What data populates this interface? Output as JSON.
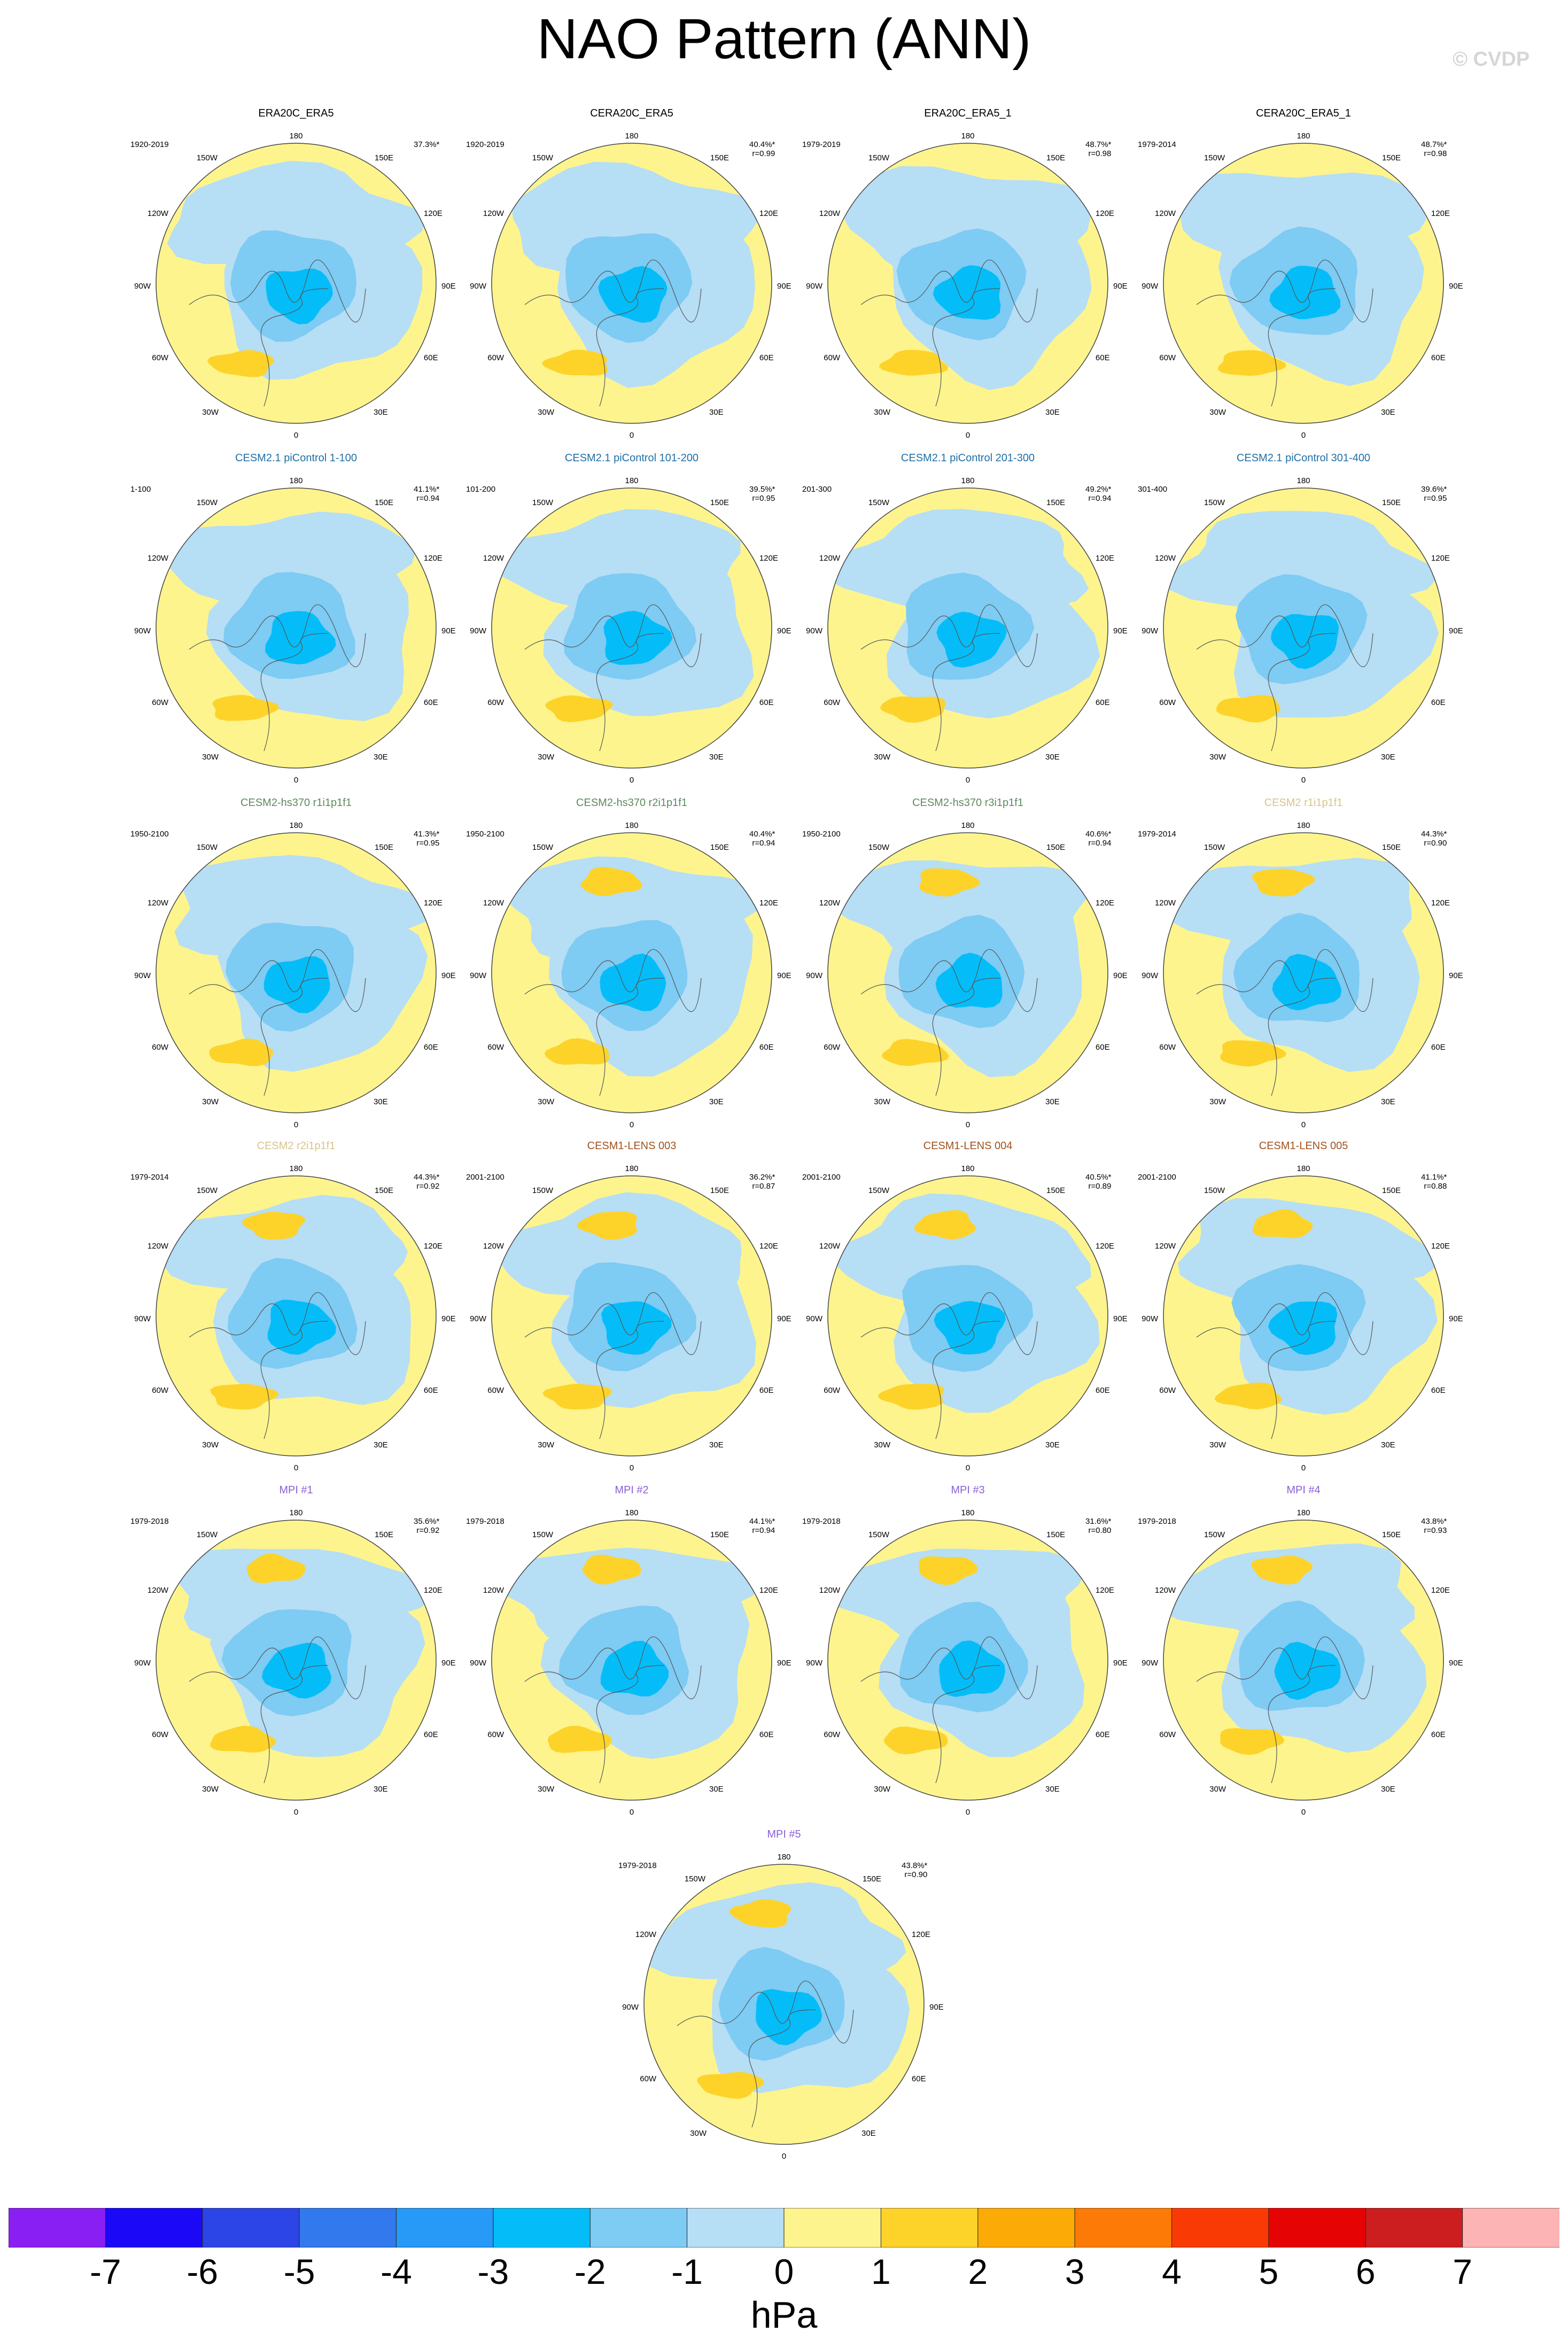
{
  "title": "NAO Pattern (ANN)",
  "watermark": "© CVDP",
  "colorbar": {
    "unit": "hPa",
    "ticks": [
      "-7",
      "-6",
      "-5",
      "-4",
      "-3",
      "-2",
      "-1",
      "0",
      "1",
      "2",
      "3",
      "4",
      "5",
      "6",
      "7"
    ],
    "colors": [
      "#8a1ff3",
      "#1a08f6",
      "#2b45e6",
      "#3179ec",
      "#2799f7",
      "#04bdf8",
      "#7ecbf3",
      "#b6def5",
      "#fdf48e",
      "#fdd32a",
      "#fcaa05",
      "#fc7a05",
      "#f93a05",
      "#e60303",
      "#cc1d1f",
      "#fdb4b4"
    ]
  },
  "map_labels": {
    "lon_top": "180",
    "lon_bottom": "0",
    "lon_150w": "150W",
    "lon_150e": "150E",
    "lon_120w": "120W",
    "lon_120e": "120E",
    "lon_90w": "90W",
    "lon_90e": "90E",
    "lon_60w": "60W",
    "lon_60e": "60E",
    "lon_30w": "30W",
    "lon_30e": "30E"
  },
  "chart_data": {
    "type": "polar stereographic contour maps",
    "variable": "NAO pattern, sea level pressure anomaly (hPa)",
    "colorbar_range": [
      -7,
      7
    ],
    "panels": [
      {
        "title": "ERA20C_ERA5",
        "title_color": "#000000",
        "period": "1920-2019",
        "pct": "37.3%*",
        "r": ""
      },
      {
        "title": "CERA20C_ERA5",
        "title_color": "#000000",
        "period": "1920-2019",
        "pct": "40.4%*",
        "r": "r=0.99"
      },
      {
        "title": "ERA20C_ERA5_1",
        "title_color": "#000000",
        "period": "1979-2019",
        "pct": "48.7%*",
        "r": "r=0.98"
      },
      {
        "title": "CERA20C_ERA5_1",
        "title_color": "#000000",
        "period": "1979-2014",
        "pct": "48.7%*",
        "r": "r=0.98"
      },
      {
        "title": "CESM2.1 piControl 1-100",
        "title_color": "#1f6fa6",
        "period": "1-100",
        "pct": "41.1%*",
        "r": "r=0.94"
      },
      {
        "title": "CESM2.1 piControl 101-200",
        "title_color": "#1f6fa6",
        "period": "101-200",
        "pct": "39.5%*",
        "r": "r=0.95"
      },
      {
        "title": "CESM2.1 piControl 201-300",
        "title_color": "#1f6fa6",
        "period": "201-300",
        "pct": "49.2%*",
        "r": "r=0.94"
      },
      {
        "title": "CESM2.1 piControl 301-400",
        "title_color": "#1f6fa6",
        "period": "301-400",
        "pct": "39.6%*",
        "r": "r=0.95"
      },
      {
        "title": "CESM2-hs370 r1i1p1f1",
        "title_color": "#5c8a5c",
        "period": "1950-2100",
        "pct": "41.3%*",
        "r": "r=0.95"
      },
      {
        "title": "CESM2-hs370 r2i1p1f1",
        "title_color": "#5c8a5c",
        "period": "1950-2100",
        "pct": "40.4%*",
        "r": "r=0.94"
      },
      {
        "title": "CESM2-hs370 r3i1p1f1",
        "title_color": "#5c8a5c",
        "period": "1950-2100",
        "pct": "40.6%*",
        "r": "r=0.94"
      },
      {
        "title": "CESM2 r1i1p1f1",
        "title_color": "#d8c48a",
        "period": "1979-2014",
        "pct": "44.3%*",
        "r": "r=0.90"
      },
      {
        "title": "CESM2 r2i1p1f1",
        "title_color": "#d8c48a",
        "period": "1979-2014",
        "pct": "44.3%*",
        "r": "r=0.92"
      },
      {
        "title": "CESM1-LENS 003",
        "title_color": "#a0521e",
        "period": "2001-2100",
        "pct": "36.2%*",
        "r": "r=0.87"
      },
      {
        "title": "CESM1-LENS 004",
        "title_color": "#a0521e",
        "period": "2001-2100",
        "pct": "40.5%*",
        "r": "r=0.89"
      },
      {
        "title": "CESM1-LENS 005",
        "title_color": "#a0521e",
        "period": "2001-2100",
        "pct": "41.1%*",
        "r": "r=0.88"
      },
      {
        "title": "MPI #1",
        "title_color": "#8b5fd6",
        "period": "1979-2018",
        "pct": "35.6%*",
        "r": "r=0.92"
      },
      {
        "title": "MPI #2",
        "title_color": "#8b5fd6",
        "period": "1979-2018",
        "pct": "44.1%*",
        "r": "r=0.94"
      },
      {
        "title": "MPI #3",
        "title_color": "#8b5fd6",
        "period": "1979-2018",
        "pct": "31.6%*",
        "r": "r=0.80"
      },
      {
        "title": "MPI #4",
        "title_color": "#8b5fd6",
        "period": "1979-2018",
        "pct": "43.8%*",
        "r": "r=0.93"
      },
      {
        "title": "MPI #5",
        "title_color": "#8b5fd6",
        "period": "1979-2018",
        "pct": "43.8%*",
        "r": "r=0.90"
      }
    ]
  }
}
